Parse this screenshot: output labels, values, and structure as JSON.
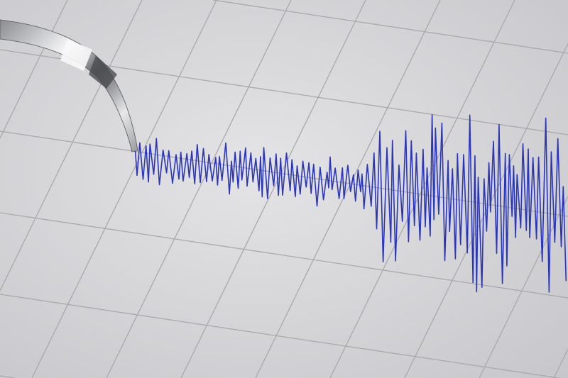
{
  "scene": {
    "subject": "seismograph",
    "colors": {
      "paper": "#dcdcde",
      "paper_shadow": "#c4c4c8",
      "grid": "#a9a9ad",
      "trace": "#2a35b8",
      "needle_light": "#f4f4f6",
      "needle_dark": "#6f7176"
    }
  }
}
